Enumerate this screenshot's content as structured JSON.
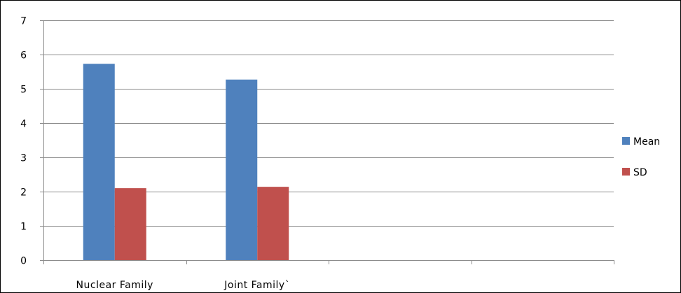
{
  "chart_data": {
    "type": "bar",
    "categories": [
      "Nuclear Family",
      "Joint Family`",
      "",
      ""
    ],
    "series": [
      {
        "name": "Mean",
        "values": [
          5.73,
          5.27,
          null,
          null
        ],
        "color": "#4f81bd"
      },
      {
        "name": "SD",
        "values": [
          2.1,
          2.14,
          null,
          null
        ],
        "color": "#c0504d"
      }
    ],
    "ylim": [
      0,
      7
    ],
    "yticks": [
      0,
      1,
      2,
      3,
      4,
      5,
      6,
      7
    ],
    "grid": true,
    "legend_position": "right"
  }
}
